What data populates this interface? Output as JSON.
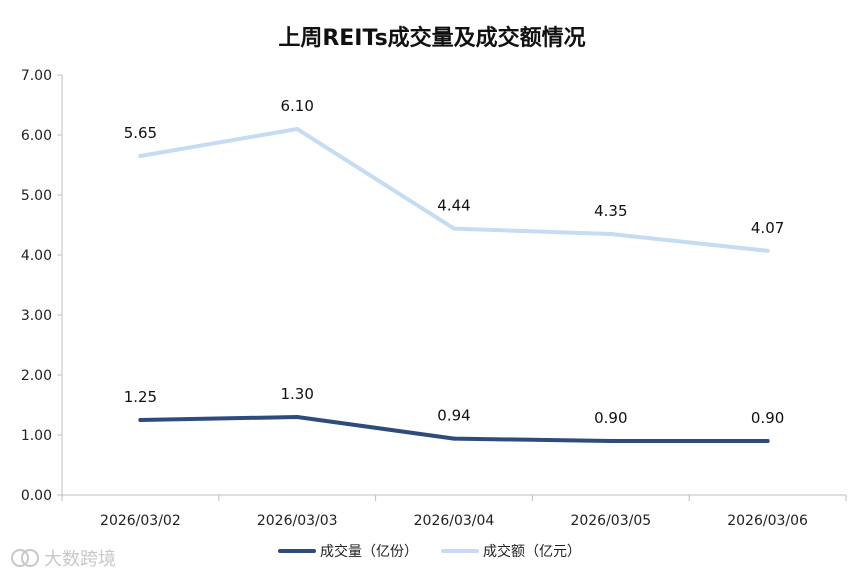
{
  "chart_data": {
    "type": "line",
    "title": "上周REITs成交量及成交额情况",
    "categories": [
      "2026/03/02",
      "2026/03/03",
      "2026/03/04",
      "2026/03/05",
      "2026/03/06"
    ],
    "series": [
      {
        "name": "成交量（亿份）",
        "values": [
          1.25,
          1.3,
          0.94,
          0.9,
          0.9
        ],
        "color": "#2f4b7c"
      },
      {
        "name": "成交额（亿元）",
        "values": [
          5.65,
          6.1,
          4.44,
          4.35,
          4.07
        ],
        "color": "#c5dcf3"
      }
    ],
    "yticks": [
      "0.00",
      "1.00",
      "2.00",
      "3.00",
      "4.00",
      "5.00",
      "6.00",
      "7.00"
    ],
    "ylim": [
      0,
      7
    ],
    "grid": false,
    "legend_position": "bottom"
  },
  "watermark": "大数跨境"
}
